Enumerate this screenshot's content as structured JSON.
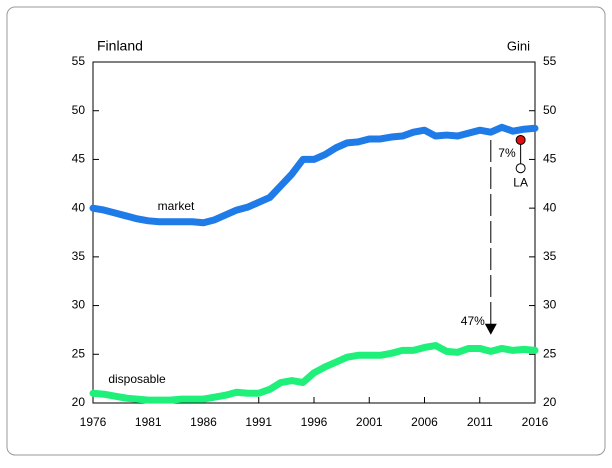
{
  "chart_data": {
    "type": "line",
    "title": "Finland",
    "y2label": "Gini",
    "x": [
      1976,
      1977,
      1978,
      1979,
      1980,
      1981,
      1982,
      1983,
      1984,
      1985,
      1986,
      1987,
      1988,
      1989,
      1990,
      1991,
      1992,
      1993,
      1994,
      1995,
      1996,
      1997,
      1998,
      1999,
      2000,
      2001,
      2002,
      2003,
      2004,
      2005,
      2006,
      2007,
      2008,
      2009,
      2010,
      2011,
      2012,
      2013,
      2014,
      2015,
      2016
    ],
    "series": [
      {
        "name": "market",
        "color": "#1e7be8",
        "values": [
          40.0,
          39.8,
          39.5,
          39.2,
          38.9,
          38.7,
          38.6,
          38.6,
          38.6,
          38.6,
          38.5,
          38.8,
          39.3,
          39.8,
          40.1,
          40.6,
          41.1,
          42.3,
          43.5,
          45.0,
          45.0,
          45.5,
          46.2,
          46.7,
          46.8,
          47.1,
          47.1,
          47.3,
          47.4,
          47.8,
          48.0,
          47.4,
          47.5,
          47.4,
          47.7,
          48.0,
          47.8,
          48.3,
          47.9,
          48.1,
          48.2
        ]
      },
      {
        "name": "disposable",
        "color": "#1ef07a",
        "values": [
          21.0,
          20.9,
          20.7,
          20.5,
          20.4,
          20.3,
          20.3,
          20.3,
          20.4,
          20.4,
          20.4,
          20.6,
          20.8,
          21.1,
          21.0,
          21.0,
          21.4,
          22.1,
          22.3,
          22.1,
          23.1,
          23.7,
          24.2,
          24.7,
          24.9,
          24.9,
          24.9,
          25.1,
          25.4,
          25.4,
          25.7,
          25.9,
          25.3,
          25.2,
          25.6,
          25.6,
          25.3,
          25.6,
          25.4,
          25.5,
          25.4
        ]
      }
    ],
    "markers": [
      {
        "x": 2014.7,
        "y": 47.0,
        "color": "#e01010"
      },
      {
        "label": "LA",
        "x": 2014.7,
        "y": 44.1,
        "color": "#ffffff"
      }
    ],
    "connector_label": "7%",
    "arrow": {
      "label": "47%",
      "x": 2012,
      "y_from": 47,
      "y_to": 27
    },
    "xlim": [
      1976,
      2016
    ],
    "xticks": [
      1976,
      1981,
      1986,
      1991,
      1996,
      2001,
      2006,
      2011,
      2016
    ],
    "ylim": [
      20,
      55
    ],
    "yticks": [
      20,
      25,
      30,
      35,
      40,
      45,
      50,
      55
    ],
    "y2lim": [
      20,
      55
    ],
    "y2ticks": [
      20,
      25,
      30,
      35,
      40,
      45,
      50,
      55
    ]
  }
}
